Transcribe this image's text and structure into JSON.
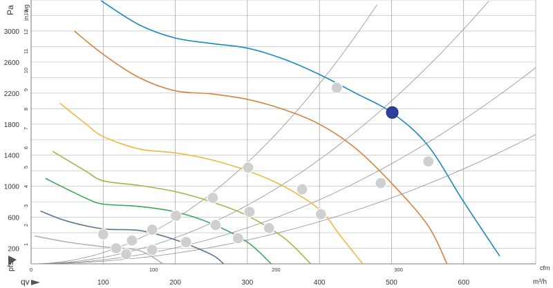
{
  "chart_data": {
    "type": "line",
    "title": "",
    "xlabel_cfm": "cfm",
    "xlabel_m3h": "m³/h",
    "xlabel_qv": "qv",
    "ylabel_pa": "Pa",
    "ylabel_inwg": "in. wg",
    "ylabel_pfs": "pfs",
    "x_range_m3h": [
      0,
      700
    ],
    "y_range_pa": [
      0,
      3400
    ],
    "cfm_ticks": [
      {
        "v": 0,
        "label": "0"
      },
      {
        "v": 100,
        "label": "100"
      },
      {
        "v": 200,
        "label": "200"
      },
      {
        "v": 300,
        "label": "300"
      }
    ],
    "m3h_ticks": [
      {
        "v": 100,
        "label": "100"
      },
      {
        "v": 200,
        "label": "200"
      },
      {
        "v": 300,
        "label": "300"
      },
      {
        "v": 400,
        "label": "400"
      },
      {
        "v": 500,
        "label": "500"
      },
      {
        "v": 600,
        "label": "600"
      }
    ],
    "pa_ticks": [
      {
        "v": 200,
        "label": "200"
      },
      {
        "v": 600,
        "label": "600"
      },
      {
        "v": 1000,
        "label": "1000"
      },
      {
        "v": 1400,
        "label": "1400"
      },
      {
        "v": 1800,
        "label": "1800"
      },
      {
        "v": 2200,
        "label": "2200"
      },
      {
        "v": 2600,
        "label": "2600"
      },
      {
        "v": 3000,
        "label": "3000"
      }
    ],
    "inwg_ticks": [
      {
        "v": 1,
        "label": "1"
      },
      {
        "v": 2,
        "label": "2"
      },
      {
        "v": 3,
        "label": "3"
      },
      {
        "v": 4,
        "label": "4"
      },
      {
        "v": 5,
        "label": "5"
      },
      {
        "v": 6,
        "label": "6"
      },
      {
        "v": 7,
        "label": "7"
      },
      {
        "v": 8,
        "label": "8"
      },
      {
        "v": 9,
        "label": "9"
      },
      {
        "v": 10,
        "label": "10"
      },
      {
        "v": 11,
        "label": "11"
      },
      {
        "v": 12,
        "label": "12"
      },
      {
        "v": 13,
        "label": "13"
      }
    ],
    "series": [
      {
        "color": "#1a88c0",
        "points": [
          [
            97,
            3390
          ],
          [
            150,
            3080
          ],
          [
            200,
            2910
          ],
          [
            250,
            2840
          ],
          [
            300,
            2780
          ],
          [
            350,
            2640
          ],
          [
            400,
            2440
          ],
          [
            450,
            2200
          ],
          [
            500,
            1950
          ],
          [
            550,
            1530
          ],
          [
            600,
            800
          ],
          [
            650,
            100
          ]
        ]
      },
      {
        "color": "#d5823c",
        "points": [
          [
            60,
            3000
          ],
          [
            100,
            2700
          ],
          [
            150,
            2400
          ],
          [
            200,
            2230
          ],
          [
            250,
            2190
          ],
          [
            300,
            2120
          ],
          [
            350,
            1990
          ],
          [
            400,
            1800
          ],
          [
            450,
            1490
          ],
          [
            500,
            1040
          ],
          [
            550,
            500
          ],
          [
            577,
            0
          ]
        ]
      },
      {
        "color": "#f0b83b",
        "points": [
          [
            40,
            2070
          ],
          [
            75,
            1810
          ],
          [
            100,
            1640
          ],
          [
            150,
            1480
          ],
          [
            200,
            1430
          ],
          [
            250,
            1340
          ],
          [
            300,
            1200
          ],
          [
            350,
            1000
          ],
          [
            400,
            700
          ],
          [
            430,
            350
          ],
          [
            460,
            0
          ]
        ]
      },
      {
        "color": "#9eb74d",
        "points": [
          [
            30,
            1450
          ],
          [
            75,
            1200
          ],
          [
            100,
            1070
          ],
          [
            150,
            1010
          ],
          [
            200,
            930
          ],
          [
            250,
            800
          ],
          [
            300,
            620
          ],
          [
            350,
            340
          ],
          [
            388,
            0
          ]
        ]
      },
      {
        "color": "#3ba858",
        "points": [
          [
            20,
            1100
          ],
          [
            75,
            850
          ],
          [
            100,
            770
          ],
          [
            150,
            740
          ],
          [
            200,
            670
          ],
          [
            250,
            520
          ],
          [
            300,
            280
          ],
          [
            333,
            0
          ]
        ]
      },
      {
        "color": "#5a7491",
        "points": [
          [
            13,
            680
          ],
          [
            50,
            550
          ],
          [
            100,
            450
          ],
          [
            150,
            430
          ],
          [
            200,
            310
          ],
          [
            250,
            120
          ],
          [
            267,
            0
          ]
        ]
      },
      {
        "color": "#a7b4c6",
        "points": [
          [
            5,
            360
          ],
          [
            50,
            280
          ],
          [
            100,
            220
          ],
          [
            150,
            170
          ],
          [
            183,
            0
          ]
        ]
      }
    ],
    "system_curves_k": [
      0.0145,
      0.0084,
      0.00516,
      0.0034
    ],
    "operating_points": [
      {
        "q": 501,
        "p": 1950,
        "highlight": true
      },
      {
        "q": 424,
        "p": 2270,
        "highlight": false
      },
      {
        "q": 551,
        "p": 1320,
        "highlight": false
      },
      {
        "q": 301,
        "p": 1240,
        "highlight": false
      },
      {
        "q": 376,
        "p": 960,
        "highlight": false
      },
      {
        "q": 252,
        "p": 850,
        "highlight": false
      },
      {
        "q": 201,
        "p": 620,
        "highlight": false
      },
      {
        "q": 168,
        "p": 440,
        "highlight": false
      },
      {
        "q": 140,
        "p": 300,
        "highlight": false
      },
      {
        "q": 118,
        "p": 200,
        "highlight": false
      },
      {
        "q": 485,
        "p": 1040,
        "highlight": false
      },
      {
        "q": 402,
        "p": 640,
        "highlight": false
      },
      {
        "q": 303,
        "p": 670,
        "highlight": false
      },
      {
        "q": 256,
        "p": 500,
        "highlight": false
      },
      {
        "q": 215,
        "p": 280,
        "highlight": false
      },
      {
        "q": 168,
        "p": 180,
        "highlight": false
      },
      {
        "q": 132,
        "p": 125,
        "highlight": false
      },
      {
        "q": 330,
        "p": 460,
        "highlight": false
      },
      {
        "q": 287,
        "p": 330,
        "highlight": false
      },
      {
        "q": 100,
        "p": 380,
        "highlight": false
      }
    ]
  }
}
